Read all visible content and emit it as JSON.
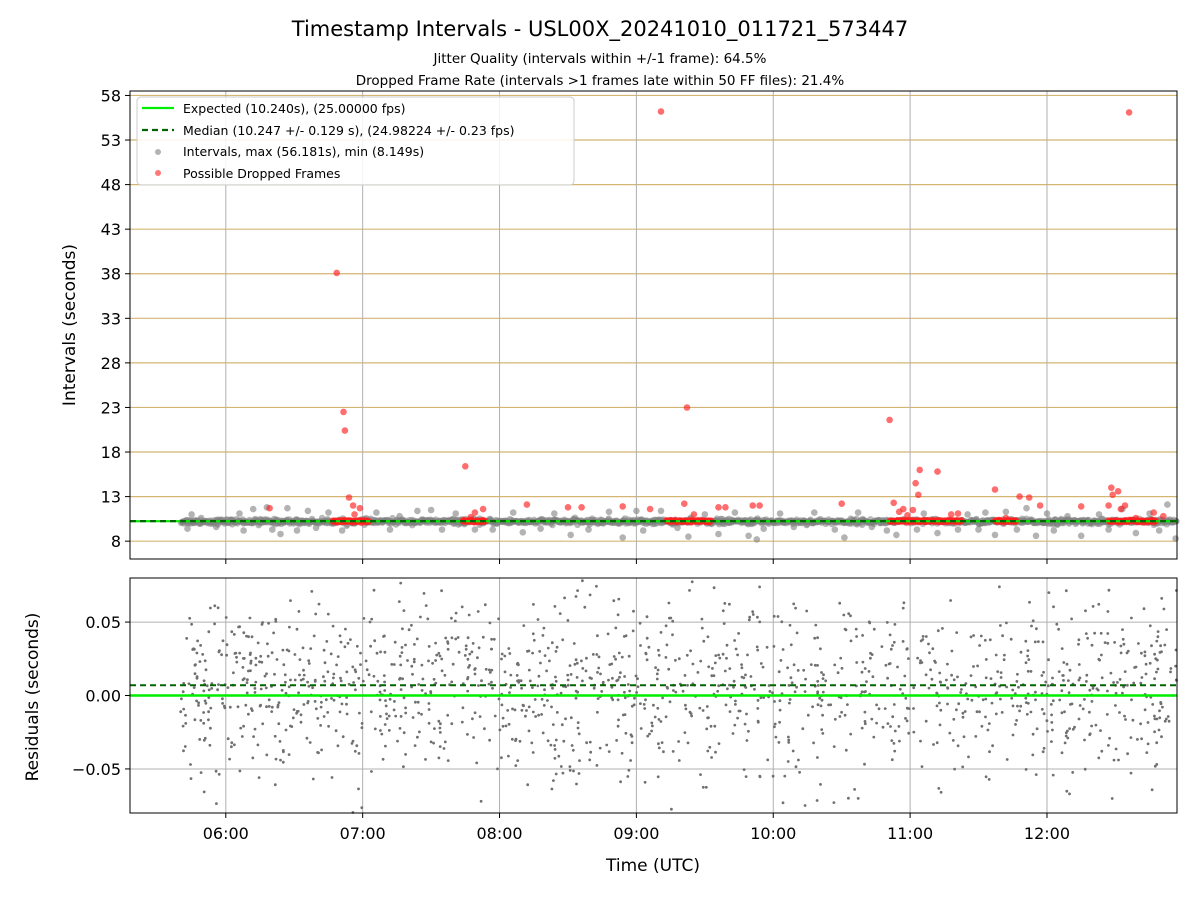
{
  "figure": {
    "title": "Timestamp Intervals - USL00X_20241010_011721_573447",
    "subtitle_1": "Jitter Quality (intervals within +/-1 frame): 64.5%",
    "subtitle_2": "Dropped Frame Rate (intervals >1 frames late within 50 FF files): 21.4%"
  },
  "colors": {
    "expected_line": "#00ee00",
    "median_line": "#006400",
    "intervals_points": "#808080",
    "dropped_points": "#ff2020",
    "hgrid_top": "#d4b572",
    "vgrid": "#b0b0b0",
    "residual_points": "#707070"
  },
  "chart_data": [
    {
      "type": "scatter",
      "panel": "intervals",
      "ylabel": "Intervals (seconds)",
      "xlabel": "",
      "x_unit": "hour_utc",
      "xlim": [
        5.3,
        12.95
      ],
      "ylim": [
        6.0,
        58.5
      ],
      "x_ticks": [
        6,
        7,
        8,
        9,
        10,
        11,
        12
      ],
      "y_ticks": [
        8,
        13,
        18,
        23,
        28,
        33,
        38,
        43,
        48,
        53,
        58
      ],
      "y_tick_labels": [
        "8",
        "13",
        "18",
        "23",
        "28",
        "33",
        "38",
        "43",
        "48",
        "53",
        "58"
      ],
      "hgrid": true,
      "vgrid": true,
      "legend_placement": "top-left",
      "legend": [
        "Expected (10.240s), (25.00000 fps)",
        "Median (10.247 +/- 0.129 s), (24.98224 +/- 0.23 fps)",
        "Intervals, max (56.181s), min (8.149s)",
        "Possible Dropped Frames"
      ],
      "expected_value": 10.24,
      "median_value": 10.247,
      "interval_cloud": {
        "x_range": [
          5.67,
          12.95
        ],
        "baseline": 10.2,
        "spread_points": [
          [
            5.72,
            9.4
          ],
          [
            5.75,
            11.0
          ],
          [
            5.82,
            10.6
          ],
          [
            5.93,
            9.6
          ],
          [
            6.1,
            11.1
          ],
          [
            6.13,
            9.2
          ],
          [
            6.2,
            11.6
          ],
          [
            6.24,
            9.8
          ],
          [
            6.3,
            11.8
          ],
          [
            6.34,
            9.3
          ],
          [
            6.4,
            8.8
          ],
          [
            6.45,
            11.7
          ],
          [
            6.52,
            9.2
          ],
          [
            6.6,
            11.4
          ],
          [
            6.66,
            9.5
          ],
          [
            6.75,
            11.2
          ],
          [
            6.85,
            9.2
          ],
          [
            7.1,
            11.2
          ],
          [
            7.2,
            9.3
          ],
          [
            7.27,
            10.8
          ],
          [
            7.4,
            11.4
          ],
          [
            7.5,
            11.5
          ],
          [
            7.58,
            9.3
          ],
          [
            7.68,
            11.1
          ],
          [
            7.82,
            9.3
          ],
          [
            7.95,
            9.3
          ],
          [
            8.1,
            11.2
          ],
          [
            8.17,
            9.0
          ],
          [
            8.3,
            9.4
          ],
          [
            8.4,
            11.1
          ],
          [
            8.52,
            8.7
          ],
          [
            8.65,
            9.3
          ],
          [
            8.8,
            11.3
          ],
          [
            8.9,
            8.4
          ],
          [
            9.0,
            11.4
          ],
          [
            9.05,
            9.2
          ],
          [
            9.18,
            11.4
          ],
          [
            9.3,
            9.5
          ],
          [
            9.38,
            8.5
          ],
          [
            9.5,
            11.0
          ],
          [
            9.6,
            8.8
          ],
          [
            9.72,
            11.2
          ],
          [
            9.82,
            8.6
          ],
          [
            9.88,
            8.2
          ],
          [
            9.93,
            9.4
          ],
          [
            10.05,
            11.1
          ],
          [
            10.15,
            9.6
          ],
          [
            10.3,
            11.2
          ],
          [
            10.45,
            9.3
          ],
          [
            10.52,
            8.4
          ],
          [
            10.62,
            11.2
          ],
          [
            10.72,
            9.6
          ],
          [
            10.83,
            9.2
          ],
          [
            10.9,
            8.7
          ],
          [
            11.05,
            9.3
          ],
          [
            11.1,
            11.1
          ],
          [
            11.2,
            8.9
          ],
          [
            11.35,
            9.3
          ],
          [
            11.42,
            11.0
          ],
          [
            11.5,
            9.3
          ],
          [
            11.55,
            11.2
          ],
          [
            11.62,
            8.7
          ],
          [
            11.7,
            11.3
          ],
          [
            11.78,
            9.3
          ],
          [
            11.85,
            11.7
          ],
          [
            11.92,
            8.6
          ],
          [
            12.0,
            11.1
          ],
          [
            12.05,
            9.2
          ],
          [
            12.15,
            10.8
          ],
          [
            12.25,
            8.6
          ],
          [
            12.38,
            11.0
          ],
          [
            12.45,
            9.3
          ],
          [
            12.55,
            11.6
          ],
          [
            12.65,
            8.9
          ],
          [
            12.75,
            11.1
          ],
          [
            12.82,
            9.2
          ],
          [
            12.88,
            12.1
          ],
          [
            12.94,
            8.3
          ]
        ]
      },
      "dropped_outliers": [
        [
          6.81,
          38.1
        ],
        [
          6.86,
          22.5
        ],
        [
          6.87,
          20.4
        ],
        [
          6.9,
          12.9
        ],
        [
          6.93,
          12.0
        ],
        [
          6.98,
          11.7
        ],
        [
          6.94,
          11.0
        ],
        [
          6.32,
          11.7
        ],
        [
          7.75,
          16.4
        ],
        [
          7.79,
          10.7
        ],
        [
          7.82,
          11.2
        ],
        [
          7.88,
          11.6
        ],
        [
          8.2,
          12.1
        ],
        [
          8.5,
          11.8
        ],
        [
          8.6,
          11.8
        ],
        [
          8.9,
          11.9
        ],
        [
          9.1,
          11.6
        ],
        [
          9.18,
          56.2
        ],
        [
          9.35,
          12.2
        ],
        [
          9.37,
          23.0
        ],
        [
          9.42,
          11.0
        ],
        [
          9.6,
          11.8
        ],
        [
          9.65,
          11.8
        ],
        [
          9.85,
          12.0
        ],
        [
          9.9,
          12.0
        ],
        [
          10.5,
          12.2
        ],
        [
          10.85,
          21.6
        ],
        [
          10.88,
          12.3
        ],
        [
          10.92,
          11.3
        ],
        [
          10.95,
          11.6
        ],
        [
          10.98,
          10.9
        ],
        [
          11.02,
          11.5
        ],
        [
          11.04,
          14.5
        ],
        [
          11.06,
          13.2
        ],
        [
          11.07,
          16.0
        ],
        [
          11.2,
          15.8
        ],
        [
          11.3,
          11.0
        ],
        [
          11.35,
          11.1
        ],
        [
          11.62,
          13.8
        ],
        [
          11.7,
          10.6
        ],
        [
          11.8,
          13.0
        ],
        [
          11.87,
          12.9
        ],
        [
          11.95,
          12.0
        ],
        [
          12.25,
          11.9
        ],
        [
          12.45,
          12.0
        ],
        [
          12.47,
          14.0
        ],
        [
          12.48,
          13.2
        ],
        [
          12.52,
          13.6
        ],
        [
          12.54,
          11.6
        ],
        [
          12.57,
          12.0
        ],
        [
          12.6,
          56.1
        ],
        [
          12.65,
          10.6
        ],
        [
          12.78,
          11.2
        ],
        [
          12.85,
          10.8
        ]
      ],
      "dropped_clusters": [
        [
          6.78,
          7.05
        ],
        [
          7.73,
          7.9
        ],
        [
          9.22,
          9.55
        ],
        [
          10.85,
          11.38
        ],
        [
          11.62,
          11.78
        ],
        [
          12.45,
          12.8
        ]
      ]
    },
    {
      "type": "scatter",
      "panel": "residuals",
      "ylabel": "Residuals (seconds)",
      "xlabel": "Time (UTC)",
      "x_unit": "hour_utc",
      "xlim": [
        5.3,
        12.95
      ],
      "ylim": [
        -0.08,
        0.08
      ],
      "x_ticks": [
        6,
        7,
        8,
        9,
        10,
        11,
        12
      ],
      "x_tick_labels": [
        "06:00",
        "07:00",
        "08:00",
        "09:00",
        "10:00",
        "11:00",
        "12:00"
      ],
      "y_ticks": [
        0.05,
        0.0,
        -0.05
      ],
      "y_tick_labels": [
        "0.05",
        "0.00",
        "−0.05"
      ],
      "hgrid": true,
      "vgrid": true,
      "expected_value": 0.0,
      "median_value": 0.007,
      "points_range": {
        "x": [
          5.67,
          12.95
        ],
        "y": [
          -0.08,
          0.08
        ],
        "count": 1500
      }
    }
  ]
}
